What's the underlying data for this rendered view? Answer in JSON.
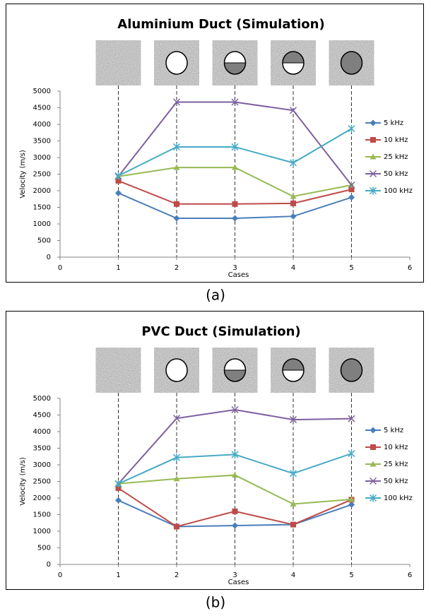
{
  "chart_data": [
    {
      "type": "line",
      "title": "Aluminium Duct (Simulation)",
      "xlabel": "Cases",
      "ylabel": "Velocity (m/s)",
      "caption": "(a)",
      "x": [
        1,
        2,
        3,
        4,
        5
      ],
      "xlim": [
        0,
        6
      ],
      "xticks": [
        0,
        1,
        2,
        3,
        4,
        5,
        6
      ],
      "ylim": [
        0,
        5000
      ],
      "yticks": [
        0,
        500,
        1000,
        1500,
        2000,
        2500,
        3000,
        3500,
        4000,
        4500,
        5000
      ],
      "legend": "right",
      "series": [
        {
          "name": "5 kHz",
          "color": "#4a7ebb",
          "marker": "diamond",
          "values": [
            1930,
            1170,
            1170,
            1230,
            1800
          ]
        },
        {
          "name": "10 kHz",
          "color": "#be4b48",
          "marker": "square",
          "values": [
            2300,
            1600,
            1600,
            1620,
            2040
          ]
        },
        {
          "name": "25 kHz",
          "color": "#98b954",
          "marker": "triangle",
          "values": [
            2430,
            2700,
            2700,
            1830,
            2170
          ]
        },
        {
          "name": "50 kHz",
          "color": "#7d60a0",
          "marker": "x",
          "values": [
            2430,
            4670,
            4670,
            4420,
            2170
          ]
        },
        {
          "name": "100 kHz",
          "color": "#46aac5",
          "marker": "star",
          "values": [
            2450,
            3320,
            3320,
            2840,
            3870
          ]
        }
      ]
    },
    {
      "type": "line",
      "title": "PVC Duct (Simulation)",
      "xlabel": "Cases",
      "ylabel": "Velocity (m/s)",
      "caption": "(b)",
      "x": [
        1,
        2,
        3,
        4,
        5
      ],
      "xlim": [
        0,
        6
      ],
      "xticks": [
        0,
        1,
        2,
        3,
        4,
        5,
        6
      ],
      "ylim": [
        0,
        5000
      ],
      "yticks": [
        0,
        500,
        1000,
        1500,
        2000,
        2500,
        3000,
        3500,
        4000,
        4500,
        5000
      ],
      "legend": "right",
      "series": [
        {
          "name": "5 kHz",
          "color": "#4a7ebb",
          "marker": "diamond",
          "values": [
            1930,
            1140,
            1170,
            1200,
            1800
          ]
        },
        {
          "name": "10 kHz",
          "color": "#be4b48",
          "marker": "square",
          "values": [
            2300,
            1140,
            1600,
            1200,
            1950
          ]
        },
        {
          "name": "25 kHz",
          "color": "#98b954",
          "marker": "triangle",
          "values": [
            2430,
            2580,
            2690,
            1820,
            1960
          ]
        },
        {
          "name": "50 kHz",
          "color": "#7d60a0",
          "marker": "x",
          "values": [
            2430,
            4400,
            4660,
            4360,
            4390
          ]
        },
        {
          "name": "100 kHz",
          "color": "#46aac5",
          "marker": "star",
          "values": [
            2430,
            3220,
            3310,
            2740,
            3340
          ]
        }
      ]
    }
  ]
}
